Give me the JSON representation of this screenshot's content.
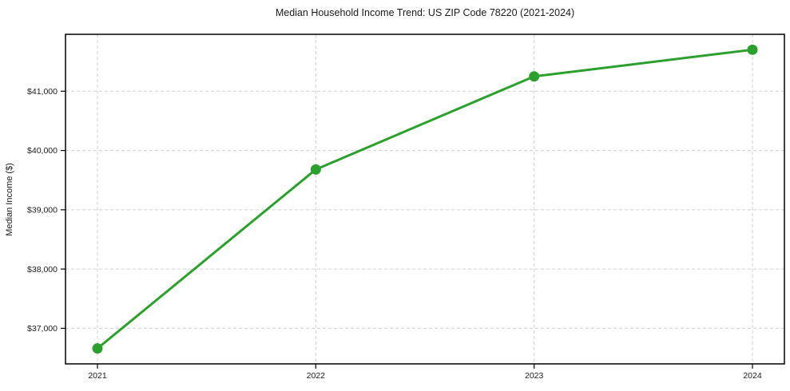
{
  "chart_data": {
    "type": "line",
    "title": "Median Household Income Trend: US ZIP Code 78220 (2021-2024)",
    "xlabel": "",
    "ylabel": "Median Income ($)",
    "categories": [
      "2021",
      "2022",
      "2023",
      "2024"
    ],
    "series": [
      {
        "name": "Median Household Income",
        "values": [
          36660,
          39680,
          41250,
          41700
        ]
      }
    ],
    "yticks": [
      37000,
      38000,
      39000,
      40000,
      41000
    ],
    "ytick_labels": [
      "$37,000",
      "$38,000",
      "$39,000",
      "$40,000",
      "$41,000"
    ],
    "ylim": [
      36400,
      41960
    ],
    "grid": "dashed-both-axes",
    "legend": "none",
    "line_color": "#2ca02c",
    "marker": "circle",
    "grid_color": "#d0d0d0",
    "frame_color": "#000000",
    "background": "#ffffff"
  }
}
